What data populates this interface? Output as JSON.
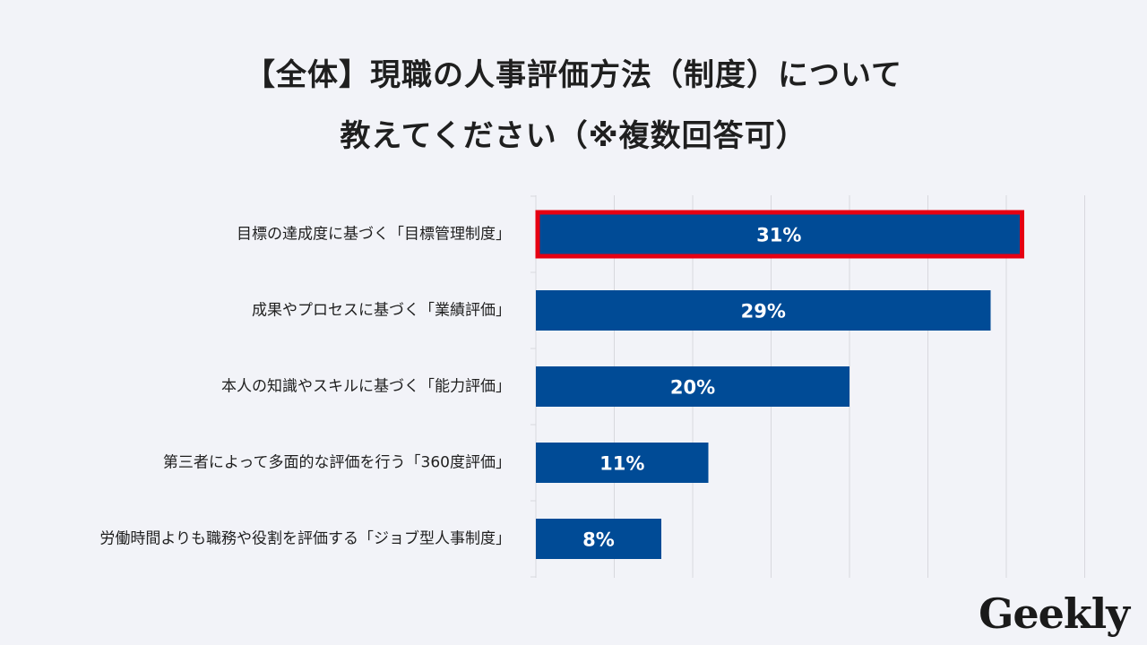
{
  "title_line1": "【全体】現職の人事評価方法（制度）について",
  "title_line2": "教えてください（※複数回答可）",
  "logo": "Geekly",
  "chart_data": {
    "type": "bar",
    "orientation": "horizontal",
    "categories": [
      "目標の達成度に基づく「目標管理制度」",
      "成果やプロセスに基づく「業績評価」",
      "本人の知識やスキルに基づく「能力評価」",
      "第三者によって多面的な評価を行う「360度評価」",
      "労働時間よりも職務や役割を評価する「ジョブ型人事制度」"
    ],
    "values": [
      31,
      29,
      20,
      11,
      8
    ],
    "value_labels": [
      "31%",
      "29%",
      "20%",
      "11%",
      "8%"
    ],
    "unit": "%",
    "xlim": [
      0,
      35
    ],
    "grid": true,
    "highlighted_index": 0,
    "bar_color": "#004b96",
    "highlight_border_color": "#e60012",
    "gridline_color": "#d8d8de",
    "background_color": "#f2f3f8"
  }
}
